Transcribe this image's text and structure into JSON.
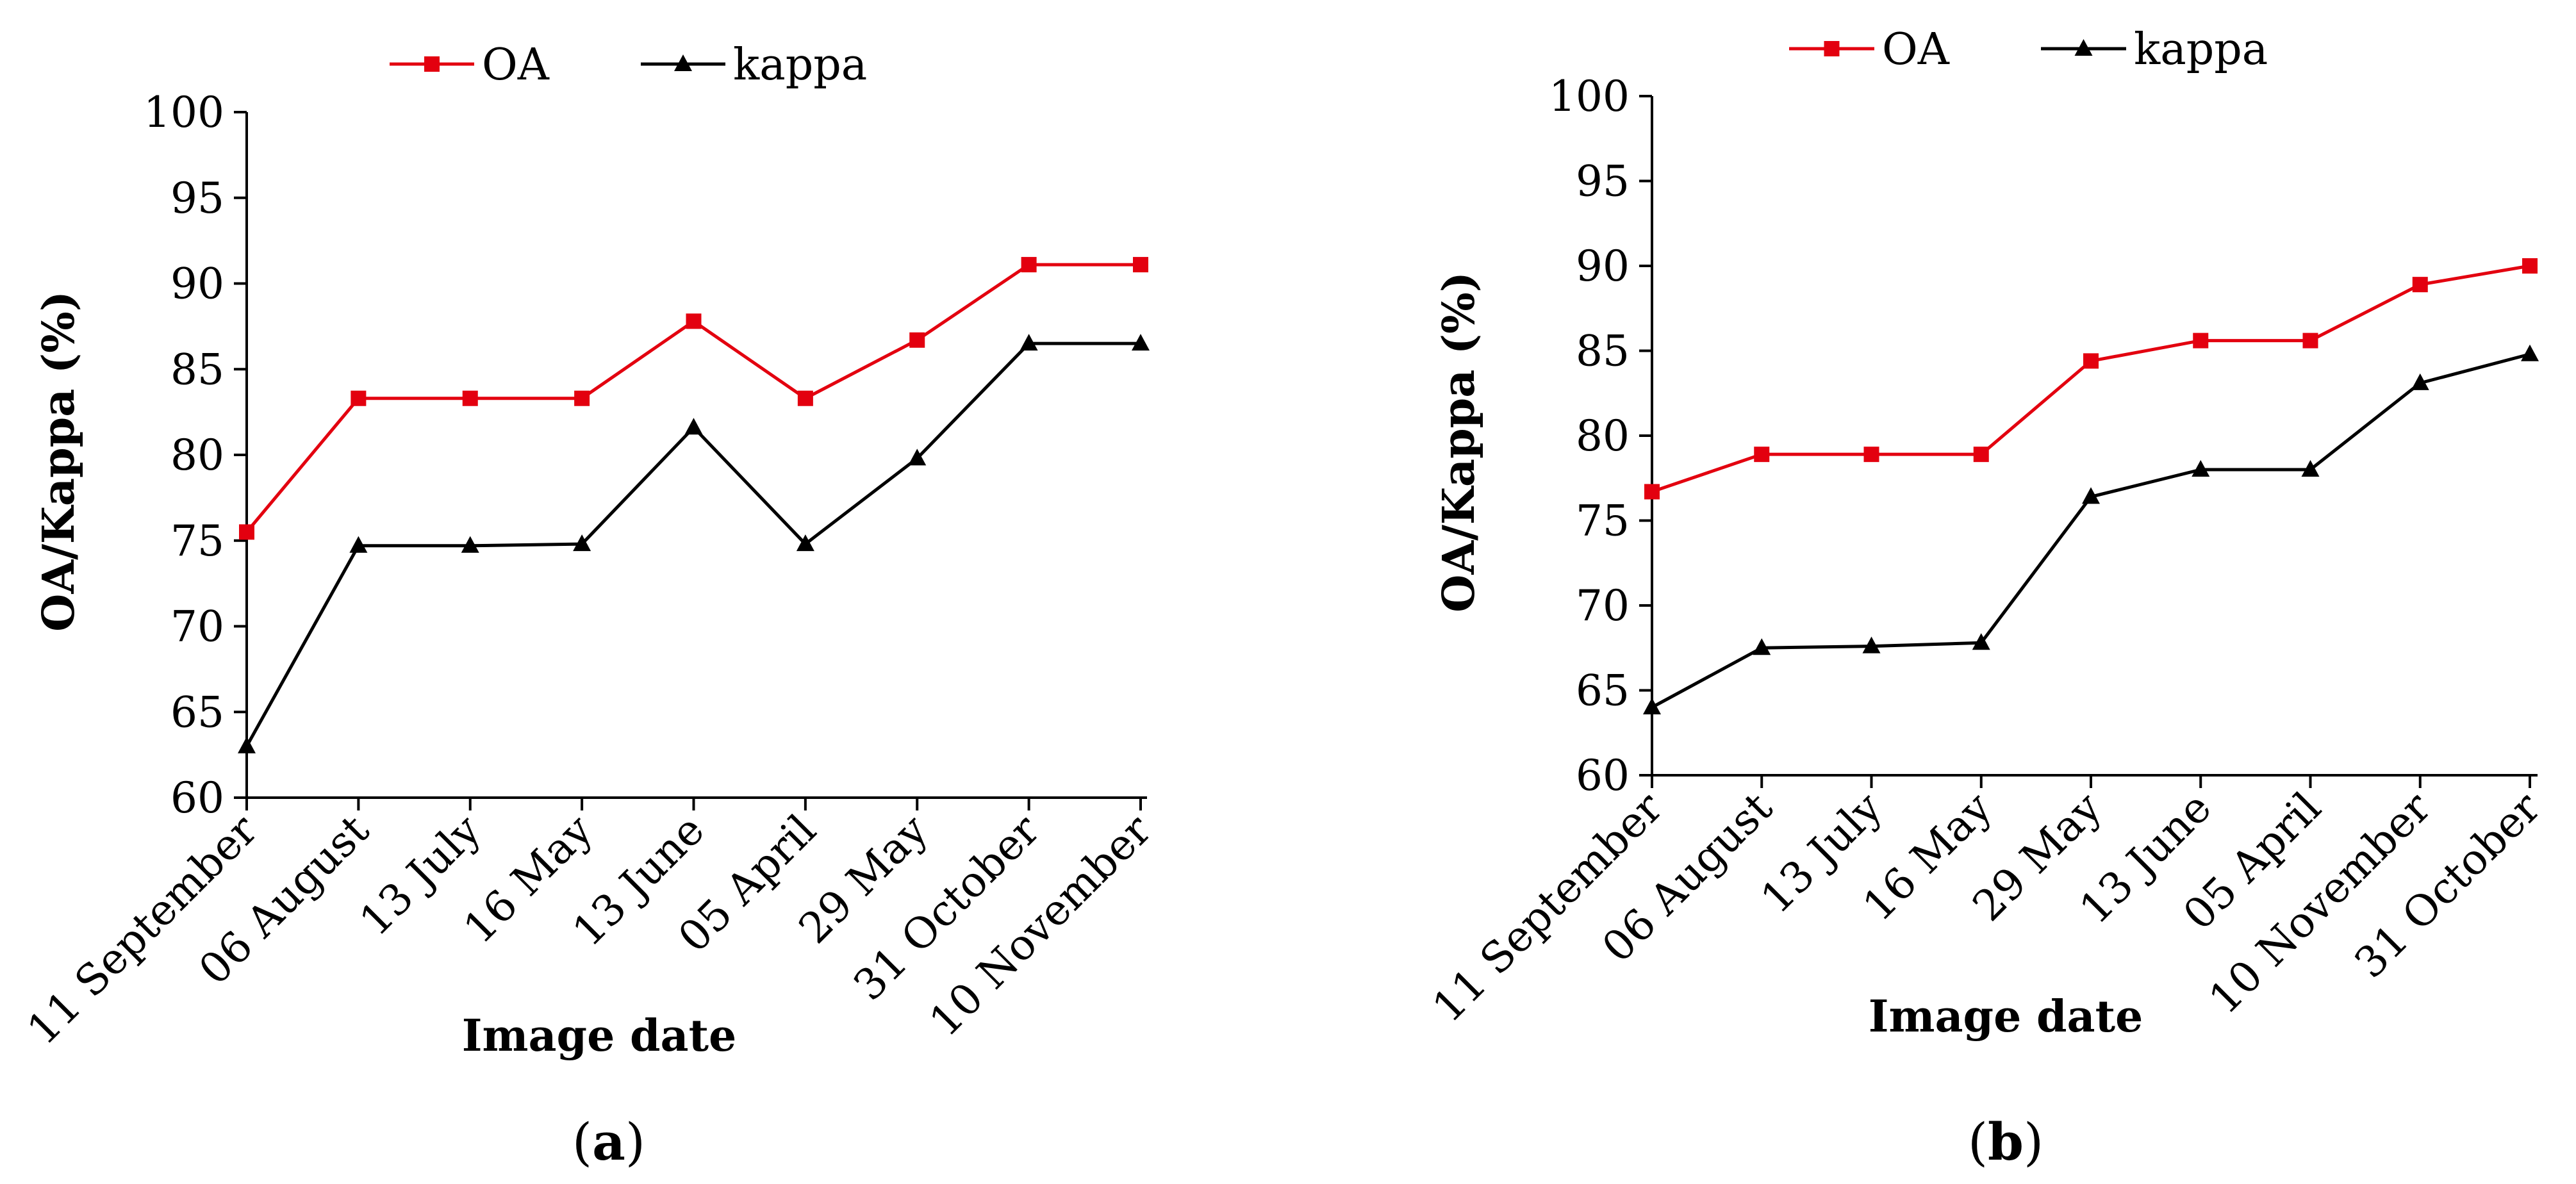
{
  "figure": {
    "panels": [
      "(a)",
      "(b)"
    ],
    "colors": {
      "oa": "#E3000F",
      "kappa": "#000000",
      "axis": "#000000"
    }
  },
  "chart_data": [
    {
      "type": "line",
      "panel_label": "a",
      "xlabel": "Image date",
      "ylabel": "OA/Kappa (%)",
      "ylim": [
        60,
        100
      ],
      "yticks": [
        60,
        65,
        70,
        75,
        80,
        85,
        90,
        95,
        100
      ],
      "categories": [
        "11 September",
        "06 August",
        "13 July",
        "16 May",
        "13 June",
        "05 April",
        "29 May",
        "31 October",
        "10 November"
      ],
      "legend": [
        "OA",
        "kappa"
      ],
      "legend_position": "top",
      "series": [
        {
          "name": "OA",
          "color": "#E3000F",
          "marker": "square",
          "values": [
            75.5,
            83.3,
            83.3,
            83.3,
            87.8,
            83.3,
            86.7,
            91.1,
            91.1
          ]
        },
        {
          "name": "kappa",
          "color": "#000000",
          "marker": "triangle",
          "values": [
            63.0,
            74.7,
            74.7,
            74.8,
            81.6,
            74.8,
            79.8,
            86.5,
            86.5
          ]
        }
      ]
    },
    {
      "type": "line",
      "panel_label": "b",
      "xlabel": "Image date",
      "ylabel": "OA/Kappa (%)",
      "ylim": [
        60,
        100
      ],
      "yticks": [
        60,
        65,
        70,
        75,
        80,
        85,
        90,
        95,
        100
      ],
      "categories": [
        "11 September",
        "06 August",
        "13 July",
        "16 May",
        "29 May",
        "13 June",
        "05 April",
        "10 November",
        "31 October"
      ],
      "legend": [
        "OA",
        "kappa"
      ],
      "legend_position": "top",
      "series": [
        {
          "name": "OA",
          "color": "#E3000F",
          "marker": "square",
          "values": [
            76.7,
            78.9,
            78.9,
            78.9,
            84.4,
            85.6,
            85.6,
            88.9,
            90.0
          ]
        },
        {
          "name": "kappa",
          "color": "#000000",
          "marker": "triangle",
          "values": [
            64.0,
            67.5,
            67.6,
            67.8,
            76.4,
            78.0,
            78.0,
            83.1,
            84.8
          ]
        }
      ]
    }
  ]
}
